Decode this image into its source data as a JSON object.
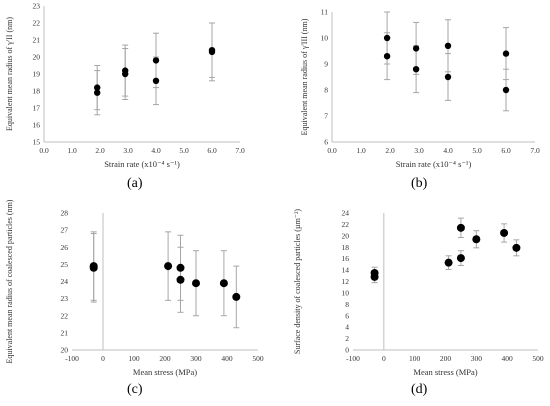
{
  "panels": [
    {
      "label": "(a)",
      "chart_data": {
        "type": "scatter",
        "xlabel": "Strain rate  (x10⁻⁴ s⁻¹)",
        "ylabel": "Equivalent mean radius of γ'II (nm)",
        "xlim": [
          0,
          7
        ],
        "ylim": [
          15,
          23
        ],
        "xticks": [
          "0.0",
          "1.0",
          "2.0",
          "3.0",
          "4.0",
          "5.0",
          "6.0",
          "7.0"
        ],
        "yticks": [
          "15",
          "16",
          "17",
          "18",
          "19",
          "20",
          "21",
          "22",
          "23"
        ],
        "xtick_values": [
          0,
          1,
          2,
          3,
          4,
          5,
          6,
          7
        ],
        "ytick_values": [
          15,
          16,
          17,
          18,
          19,
          20,
          21,
          22,
          23
        ],
        "grid": false,
        "points": [
          {
            "x": 1.9,
            "y": 17.9,
            "err": 1.3
          },
          {
            "x": 1.9,
            "y": 18.2,
            "err": 1.3
          },
          {
            "x": 2.9,
            "y": 19.0,
            "err": 1.5
          },
          {
            "x": 2.9,
            "y": 19.2,
            "err": 1.5
          },
          {
            "x": 4.0,
            "y": 18.6,
            "err": 1.4
          },
          {
            "x": 4.0,
            "y": 19.8,
            "err": 1.6
          },
          {
            "x": 6.0,
            "y": 20.3,
            "err": 1.7
          },
          {
            "x": 6.0,
            "y": 20.4,
            "err": 1.6
          }
        ]
      }
    },
    {
      "label": "(b)",
      "chart_data": {
        "type": "scatter",
        "xlabel": "Strain rate  (x10⁻⁴ s⁻¹)",
        "ylabel": "Equivalent mean radius of γ'III (nm)",
        "xlim": [
          0,
          7
        ],
        "ylim": [
          6,
          11
        ],
        "xticks": [
          "0.0",
          "1.0",
          "2.0",
          "3.0",
          "4.0",
          "5.0",
          "6.0",
          "7.0"
        ],
        "yticks": [
          "6",
          "7",
          "8",
          "9",
          "10",
          "11"
        ],
        "xtick_values": [
          0,
          1,
          2,
          3,
          4,
          5,
          6,
          7
        ],
        "ytick_values": [
          6,
          7,
          8,
          9,
          10,
          11
        ],
        "grid": false,
        "points": [
          {
            "x": 1.9,
            "y": 9.3,
            "err": 0.9
          },
          {
            "x": 1.9,
            "y": 10.0,
            "err": 1.0
          },
          {
            "x": 2.9,
            "y": 8.8,
            "err": 0.9
          },
          {
            "x": 2.9,
            "y": 9.6,
            "err": 1.0
          },
          {
            "x": 4.0,
            "y": 8.5,
            "err": 0.9
          },
          {
            "x": 4.0,
            "y": 9.7,
            "err": 1.0
          },
          {
            "x": 6.0,
            "y": 8.0,
            "err": 0.8
          },
          {
            "x": 6.0,
            "y": 9.4,
            "err": 1.0
          }
        ]
      }
    },
    {
      "label": "(c)",
      "chart_data": {
        "type": "scatter",
        "xlabel": "Mean stress (MPa)",
        "ylabel": "Equivalent mean radius of coalesced particles (nm)",
        "xlim": [
          -100,
          500
        ],
        "ylim": [
          20,
          28
        ],
        "xticks": [
          "-100",
          "0",
          "100",
          "200",
          "300",
          "400",
          "500"
        ],
        "yticks": [
          "20",
          "21",
          "22",
          "23",
          "24",
          "25",
          "26",
          "27",
          "28"
        ],
        "xtick_values": [
          -100,
          0,
          100,
          200,
          300,
          400,
          500
        ],
        "ytick_values": [
          20,
          21,
          22,
          23,
          24,
          25,
          26,
          27,
          28
        ],
        "grid": false,
        "points": [
          {
            "x": -30,
            "y": 24.8,
            "err": 2.0
          },
          {
            "x": -30,
            "y": 24.9,
            "err": 2.0
          },
          {
            "x": 210,
            "y": 24.9,
            "err": 2.0
          },
          {
            "x": 250,
            "y": 24.1,
            "err": 1.9
          },
          {
            "x": 250,
            "y": 24.8,
            "err": 1.9
          },
          {
            "x": 300,
            "y": 23.9,
            "err": 1.9
          },
          {
            "x": 390,
            "y": 23.9,
            "err": 1.9
          },
          {
            "x": 430,
            "y": 23.1,
            "err": 1.8
          }
        ]
      }
    },
    {
      "label": "(d)",
      "chart_data": {
        "type": "scatter",
        "xlabel": "Mean stress (MPa)",
        "ylabel": "Surface density of coalesced particles (µm⁻²)",
        "xlim": [
          -100,
          500
        ],
        "ylim": [
          0,
          24
        ],
        "xticks": [
          "-100",
          "0",
          "100",
          "200",
          "300",
          "400",
          "500"
        ],
        "yticks": [
          "0",
          "2",
          "4",
          "6",
          "8",
          "10",
          "12",
          "14",
          "16",
          "18",
          "20",
          "22",
          "24"
        ],
        "xtick_values": [
          -100,
          0,
          100,
          200,
          300,
          400,
          500
        ],
        "ytick_values": [
          0,
          2,
          4,
          6,
          8,
          10,
          12,
          14,
          16,
          18,
          20,
          22,
          24
        ],
        "grid": false,
        "points": [
          {
            "x": -30,
            "y": 12.8,
            "err": 1.0
          },
          {
            "x": -30,
            "y": 13.5,
            "err": 1.0
          },
          {
            "x": 210,
            "y": 15.3,
            "err": 1.2
          },
          {
            "x": 250,
            "y": 16.1,
            "err": 1.3
          },
          {
            "x": 250,
            "y": 21.4,
            "err": 1.7
          },
          {
            "x": 300,
            "y": 19.4,
            "err": 1.5
          },
          {
            "x": 390,
            "y": 20.5,
            "err": 1.6
          },
          {
            "x": 430,
            "y": 17.9,
            "err": 1.4
          }
        ]
      }
    }
  ]
}
